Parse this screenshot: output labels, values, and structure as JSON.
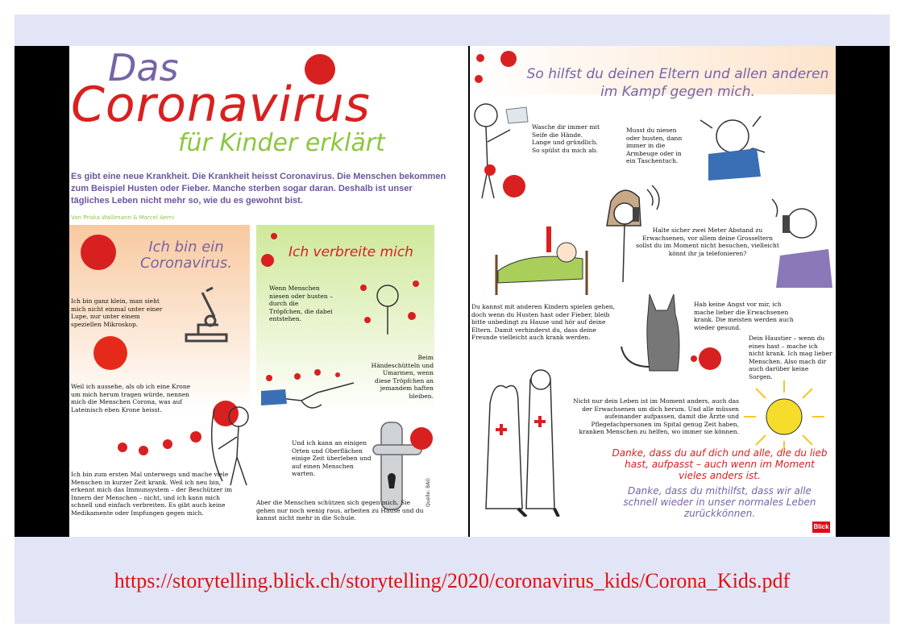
{
  "left": {
    "title_das": "Das",
    "title_coronavirus": "Coronavirus",
    "title_sub": "für Kinder erklärt",
    "intro": "Es gibt eine neue Krankheit. Die Krankheit heisst Coronavirus. Die Menschen bekommen zum Beispiel Husten oder Fieber. Manche sterben sogar daran. Deshalb ist unser tägliches Leben nicht mehr so, wie du es gewohnt bist.",
    "authors": "Von Priska Wallimann & Marcel Aerni",
    "col1": {
      "heading": "Ich bin ein Coronavirus.",
      "p1": "Ich bin ganz klein, man sieht mich nicht einmal unter einer Lupe, nur unter einem speziellen Mikroskop.",
      "p2": "Weil ich aussehe, als ob ich eine Krone um mich herum tragen würde, nennen mich die Menschen Corona, was auf Lateinisch eben Krone heisst.",
      "p3": "Ich bin zum ersten Mal unterwegs und mache viele Menschen in kurzer Zeit krank. Weil ich neu bin, erkennt mich das Immunsystem – der Beschützer im Innern der Menschen – nicht, und ich kann mich schnell und einfach verbreiten. Es gibt auch keine Medikamente oder Impfungen gegen mich."
    },
    "col2": {
      "heading": "Ich verbreite mich",
      "p1": "Wenn Menschen niesen oder husten – durch die Tröpfchen, die dabei entstehen.",
      "p2": "Beim Händeschütteln und Umarmen, wenn diese Tröpfchen an jemandem haften bleiben.",
      "p3": "Und ich kann an einigen Orten und Oberflächen einige Zeit überleben und auf einen Menschen warten.",
      "p4": "Aber die Menschen schützen sich gegen mich. Sie gehen nur noch wenig raus, arbeiten zu Hause und du kannst nicht mehr in die Schule.",
      "source": "Quelle: BAG"
    }
  },
  "right": {
    "title": "So hilfst du deinen Eltern und allen anderen im Kampf gegen mich.",
    "tip_wash": "Wasche dir immer mit Seife die Hände. Lange und gründlich. So spülst du mich ab.",
    "tip_sneeze": "Musst du niesen oder husten, dann immer in die Armbeuge oder in ein Taschentuch.",
    "tip_distance": "Halte sicher zwei Meter Abstand zu Erwachsenen, vor allem deine Grosseltern sollst du im Moment nicht besuchen, vielleicht könnt ihr ja telefonieren?",
    "tip_fever": "Du kannst mit anderen Kindern spielen gehen, doch wenn du Husten hast oder Fieber, bleib bitte unbedingt zu Hause und hör auf deine Eltern. Damit verhinderst du, dass deine Freunde vielleicht auch krank werden.",
    "tip_fear": "Hab keine Angst vor mir, ich mache lieber die Erwachsenen krank. Die meisten werden auch wieder gesund.",
    "tip_pet": "Dein Haustier – wenn du eines hast – mache ich nicht krank. Ich mag lieber Menschen. Also mach dir auch darüber keine Sorgen.",
    "tip_life": "Nicht nur dein Leben ist im Moment anders, auch das der Erwachsenen um dich herum. Und alle müssen aufeinander aufpassen, damit die Ärzte und Pflegefachpersonen im Spital genug Zeit haben, kranken Menschen zu helfen, wo immer sie können.",
    "thanks1": "Danke, dass du auf dich und alle, die du lieb hast, aufpasst – auch wenn im Moment vieles anders ist.",
    "thanks2": "Danke, dass du mithilfst, dass wir alle schnell wieder in unser normales Leben zurückkönnen.",
    "logo": "Blick"
  },
  "colors": {
    "title_purple": "#7763a8",
    "corona_red": "#d92020",
    "sub_green": "#8cc63f",
    "frame_bg": "#e2e5f6",
    "url_red": "#d11111"
  },
  "url": "https://storytelling.blick.ch/storytelling/2020/coronavirus_kids/Corona_Kids.pdf"
}
